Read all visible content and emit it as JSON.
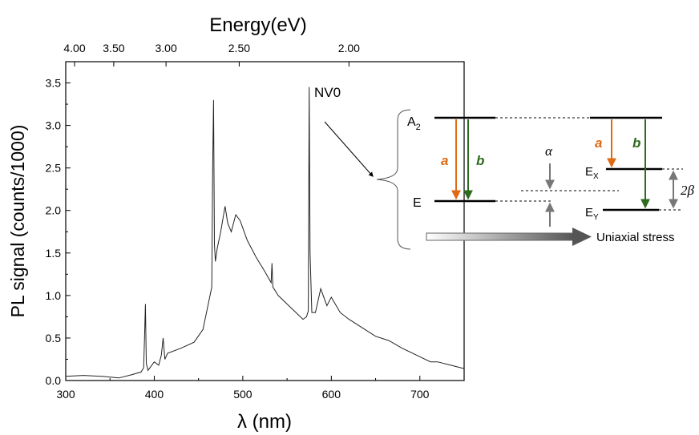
{
  "chart_data": {
    "type": "line",
    "xlabel": "λ (nm)",
    "ylabel": "PL signal (counts/1000)",
    "top_axis_label": "Energy(eV)",
    "xlim": [
      300,
      750
    ],
    "ylim": [
      0,
      3.75
    ],
    "x_ticks": [
      300,
      400,
      500,
      600,
      700
    ],
    "x_tick_labels": [
      "300",
      "400",
      "500",
      "600",
      "700"
    ],
    "y_ticks": [
      0,
      0.5,
      1.0,
      1.5,
      2.0,
      2.5,
      3.0,
      3.5
    ],
    "y_tick_labels": [
      "0.0",
      "0.5",
      "1.0",
      "1.5",
      "2.0",
      "2.5",
      "3.0",
      "3.5"
    ],
    "top_ticks_eV": [
      4.0,
      3.5,
      3.0,
      2.5,
      2.0
    ],
    "top_tick_labels": [
      "4.00",
      "3.50",
      "3.00",
      "2.50",
      "2.00"
    ],
    "grid": false,
    "series": [
      {
        "x": [
          300,
          320,
          340,
          360,
          375,
          385,
          388,
          389,
          390,
          391,
          393,
          400,
          405,
          408,
          410,
          412,
          415,
          430,
          445,
          455,
          460,
          465,
          466,
          467,
          468,
          469,
          471,
          475,
          480,
          483,
          487,
          492,
          497,
          505,
          515,
          525,
          532,
          533,
          534,
          540,
          550,
          560,
          568,
          572,
          574,
          575,
          576,
          578,
          582,
          588,
          595,
          600,
          610,
          620,
          635,
          650,
          665,
          680,
          700,
          712,
          720,
          735,
          750
        ],
        "y": [
          0.05,
          0.06,
          0.05,
          0.03,
          0.07,
          0.1,
          0.15,
          0.5,
          0.9,
          0.2,
          0.12,
          0.22,
          0.18,
          0.3,
          0.5,
          0.25,
          0.32,
          0.38,
          0.45,
          0.6,
          0.85,
          1.1,
          2.5,
          3.3,
          1.6,
          1.4,
          1.55,
          1.75,
          2.05,
          1.85,
          1.75,
          1.95,
          1.88,
          1.65,
          1.45,
          1.28,
          1.15,
          1.38,
          1.1,
          1.0,
          0.9,
          0.8,
          0.72,
          0.75,
          0.82,
          3.45,
          1.5,
          0.8,
          0.8,
          1.08,
          0.88,
          0.98,
          0.8,
          0.72,
          0.62,
          0.52,
          0.47,
          0.38,
          0.28,
          0.22,
          0.22,
          0.18,
          0.14
        ]
      }
    ],
    "annotations": [
      {
        "text": "NV0",
        "x": 578,
        "y": 3.45
      }
    ]
  },
  "inset": {
    "ground_label": "E",
    "excited_label": "A",
    "excited_sub": "2",
    "transition_a": "a",
    "transition_b": "b",
    "alpha_label": "α",
    "ex_label": "E",
    "ex_sub": "X",
    "ey_label": "E",
    "ey_sub": "Y",
    "beta_label": "2β",
    "stress_label": "Uniaxial stress",
    "colors": {
      "a": "#e06a14",
      "b": "#2e6b1e",
      "gray": "#777777"
    }
  }
}
